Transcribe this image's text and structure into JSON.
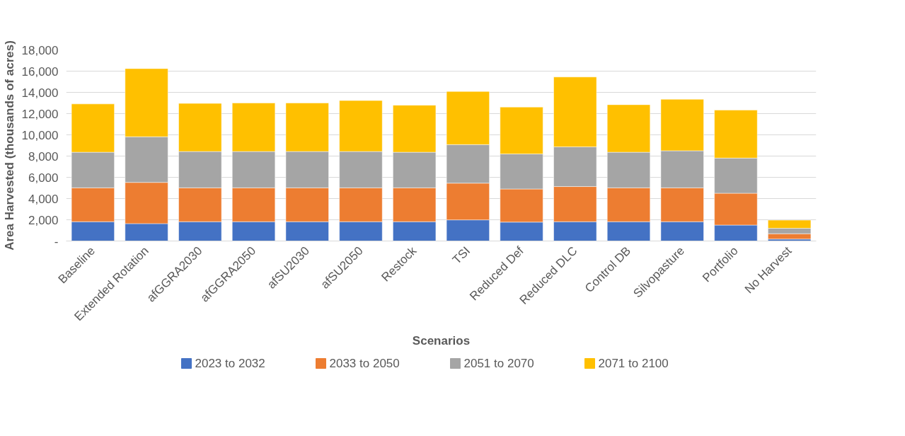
{
  "chart_data": {
    "type": "bar",
    "stacked": true,
    "xlabel": "Scenarios",
    "ylabel": "Area Harvested (thousands of acres)",
    "categories": [
      "Baseline",
      "Extended Rotation",
      "afGGRA2030",
      "afGGRA2050",
      "afSU2030",
      "afSU2050",
      "Restock",
      "TSI",
      "Reduced Def",
      "Reduced DLC",
      "Control DB",
      "Silvopasture",
      "Portfolio",
      "No Harvest"
    ],
    "series": [
      {
        "name": "2023 to 2032",
        "color": "#4472c4",
        "values": [
          1820,
          1640,
          1820,
          1820,
          1820,
          1820,
          1820,
          1990,
          1780,
          1820,
          1820,
          1820,
          1500,
          180
        ]
      },
      {
        "name": "2033 to 2050",
        "color": "#ed7d31",
        "values": [
          3190,
          3880,
          3190,
          3190,
          3190,
          3190,
          3190,
          3460,
          3120,
          3310,
          3190,
          3190,
          3000,
          510
        ]
      },
      {
        "name": "2051 to 2070",
        "color": "#a5a5a5",
        "values": [
          3350,
          4300,
          3420,
          3420,
          3420,
          3420,
          3350,
          3630,
          3300,
          3740,
          3350,
          3490,
          3310,
          510
        ]
      },
      {
        "name": "2071 to 2100",
        "color": "#ffc000",
        "values": [
          4550,
          6420,
          4530,
          4570,
          4570,
          4800,
          4430,
          5010,
          4410,
          6580,
          4480,
          4850,
          4520,
          760
        ]
      }
    ],
    "ylim": [
      0,
      18000
    ],
    "yticks": [
      {
        "value": 0,
        "label": "-"
      },
      {
        "value": 2000,
        "label": "2,000"
      },
      {
        "value": 4000,
        "label": "4,000"
      },
      {
        "value": 6000,
        "label": "6,000"
      },
      {
        "value": 8000,
        "label": "8,000"
      },
      {
        "value": 10000,
        "label": "10,000"
      },
      {
        "value": 12000,
        "label": "12,000"
      },
      {
        "value": 14000,
        "label": "14,000"
      },
      {
        "value": 16000,
        "label": "16,000"
      },
      {
        "value": 18000,
        "label": "18,000"
      }
    ],
    "grid": "y",
    "legend": "bottom"
  }
}
